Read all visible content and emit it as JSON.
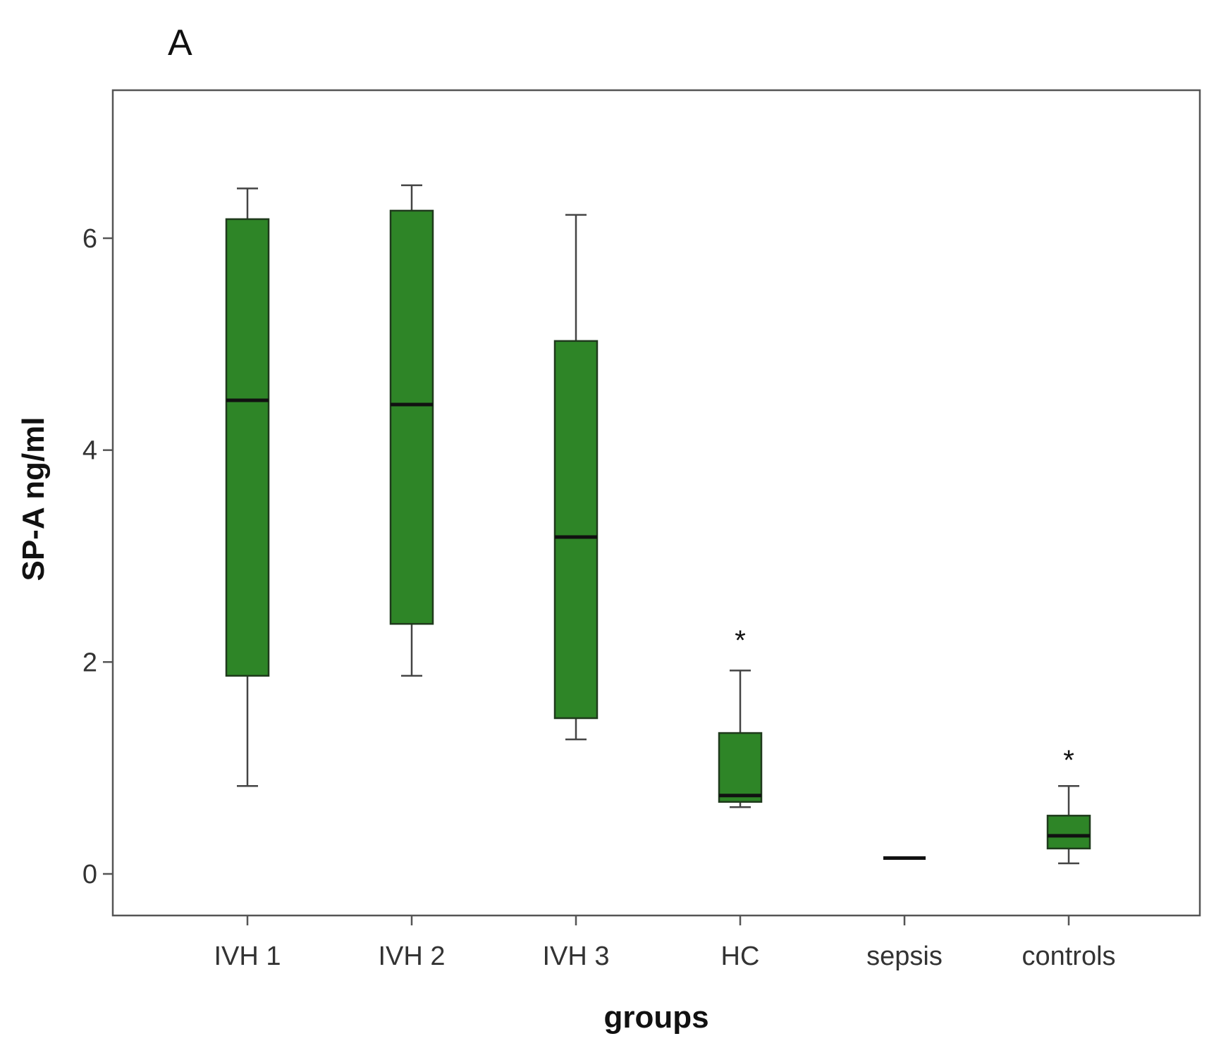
{
  "chart_data": {
    "type": "box",
    "panel_label": "A",
    "title": "",
    "xlabel": "groups",
    "ylabel": "SP-A ng/ml",
    "ylim": [
      -0.4,
      7.4
    ],
    "yticks": [
      0,
      2,
      4,
      6
    ],
    "grid": false,
    "box_color": "#2e8527",
    "categories": [
      "IVH 1",
      "IVH 2",
      "IVH 3",
      "HC",
      "sepsis",
      "controls"
    ],
    "boxes": [
      {
        "name": "IVH 1",
        "whisker_low": 0.83,
        "q1": 1.87,
        "median": 4.47,
        "q3": 6.18,
        "whisker_high": 6.47,
        "outlier_marker": ""
      },
      {
        "name": "IVH 2",
        "whisker_low": 1.87,
        "q1": 2.36,
        "median": 4.43,
        "q3": 6.26,
        "whisker_high": 6.5,
        "outlier_marker": ""
      },
      {
        "name": "IVH 3",
        "whisker_low": 1.27,
        "q1": 1.47,
        "median": 3.18,
        "q3": 5.03,
        "whisker_high": 6.22,
        "outlier_marker": ""
      },
      {
        "name": "HC",
        "whisker_low": 0.63,
        "q1": 0.68,
        "median": 0.74,
        "q3": 1.33,
        "whisker_high": 1.92,
        "outlier_marker": "*",
        "outlier_value": 2.26
      },
      {
        "name": "sepsis",
        "whisker_low": 0.15,
        "q1": 0.15,
        "median": 0.15,
        "q3": 0.15,
        "whisker_high": 0.15,
        "outlier_marker": ""
      },
      {
        "name": "controls",
        "whisker_low": 0.1,
        "q1": 0.24,
        "median": 0.36,
        "q3": 0.55,
        "whisker_high": 0.83,
        "outlier_marker": "*",
        "outlier_value": 1.13
      }
    ]
  }
}
